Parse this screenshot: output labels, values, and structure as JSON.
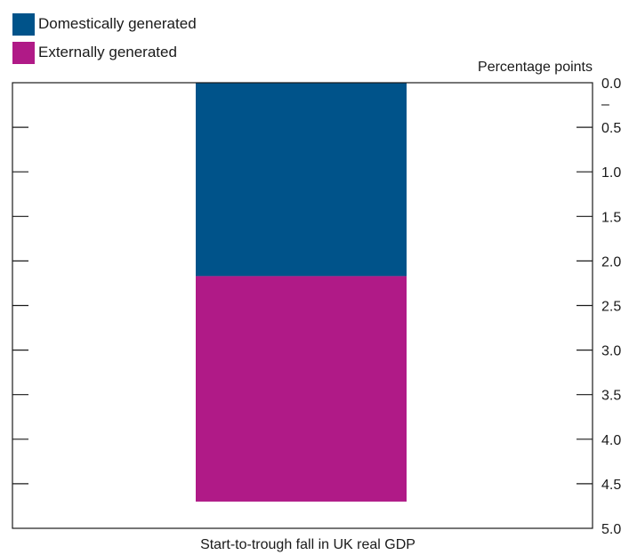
{
  "chart_data": {
    "type": "bar",
    "stacked": true,
    "orientation": "vertical",
    "y_inverted": true,
    "categories": [
      "Start-to-trough fall in UK real GDP"
    ],
    "series": [
      {
        "name": "Domestically generated",
        "values": [
          2.17
        ],
        "color": "#00538a"
      },
      {
        "name": "Externally generated",
        "values": [
          2.53
        ],
        "color": "#b01a87"
      }
    ],
    "title": "",
    "xlabel": "Start-to-trough fall in UK real GDP",
    "ylabel": "Percentage points",
    "ylim": [
      0,
      5
    ],
    "y_ticks": [
      "0.0",
      "0.5",
      "1.0",
      "1.5",
      "2.0",
      "2.5",
      "3.0",
      "3.5",
      "4.0",
      "4.5",
      "5.0"
    ],
    "legend": "top-left",
    "grid": false
  }
}
